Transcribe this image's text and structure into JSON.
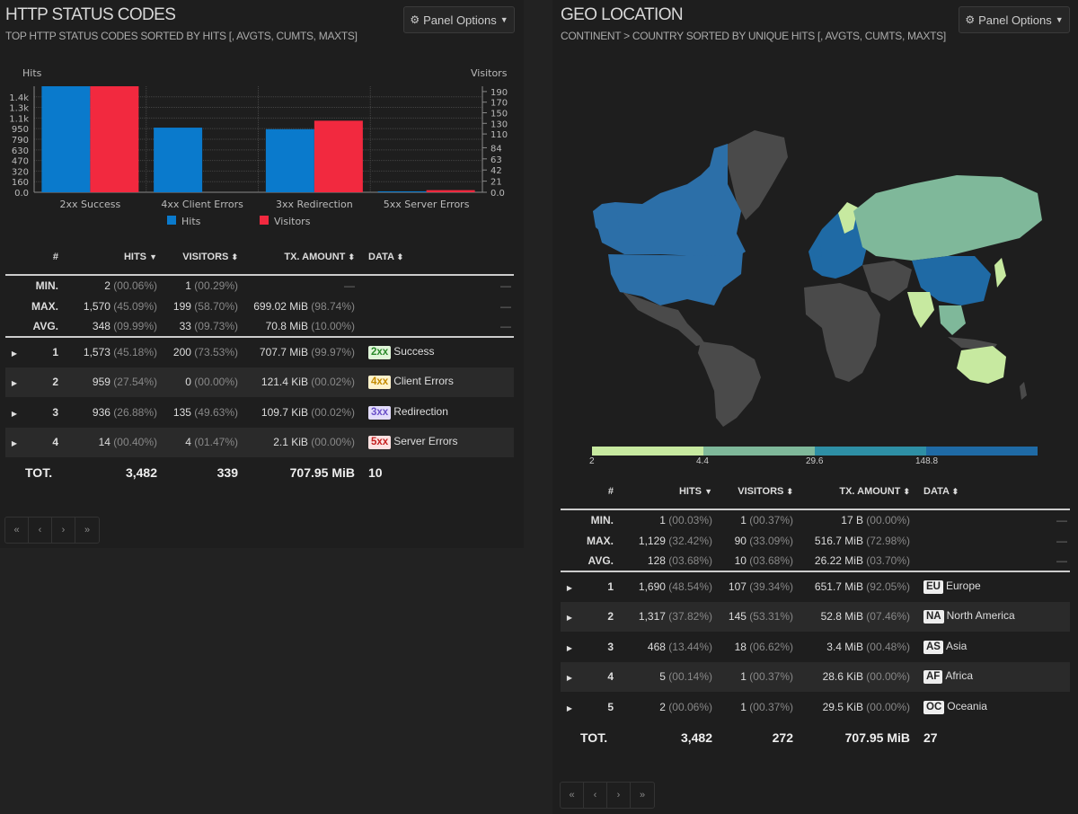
{
  "http_panel": {
    "title": "HTTP STATUS CODES",
    "subtitle": "TOP HTTP STATUS CODES SORTED BY HITS [, AVGTS, CUMTS, MAXTS]",
    "options_label": "Panel Options",
    "chart_data": {
      "type": "bar",
      "categories": [
        "2xx Success",
        "4xx Client Errors",
        "3xx Redirection",
        "5xx Server Errors"
      ],
      "series": [
        {
          "name": "Hits",
          "values": [
            1573,
            959,
            936,
            14
          ],
          "color": "#0a7acc",
          "axis": "left"
        },
        {
          "name": "Visitors",
          "values": [
            200,
            0,
            135,
            4
          ],
          "color": "#f2293f",
          "axis": "right"
        }
      ],
      "ylabel_left": "Hits",
      "ylabel_right": "Visitors",
      "ylim_left": [
        0,
        1573
      ],
      "ylim_right": [
        0,
        200
      ],
      "left_ticks": [
        "1.4k",
        "1.3k",
        "1.1k",
        "950",
        "790",
        "630",
        "470",
        "320",
        "160",
        "0.0"
      ],
      "left_tick_values": [
        1416,
        1259,
        1101,
        944,
        787,
        629,
        472,
        315,
        157,
        0
      ],
      "right_ticks": [
        "190",
        "170",
        "150",
        "130",
        "110",
        "84",
        "63",
        "42",
        "21",
        "0.0"
      ],
      "right_tick_values": [
        190,
        170,
        150,
        130,
        110,
        84,
        63,
        42,
        21,
        0
      ],
      "legend": [
        "Hits",
        "Visitors"
      ],
      "legend_position": "bottom"
    },
    "table": {
      "headers": {
        "num": "#",
        "hits": "HITS",
        "visitors": "VISITORS",
        "tx": "TX. AMOUNT",
        "data": "DATA"
      },
      "stats": [
        {
          "label": "MIN.",
          "hits": "2",
          "hits_pct": "(00.06%)",
          "visitors": "1",
          "visitors_pct": "(00.29%)",
          "tx": "—",
          "tx_pct": "",
          "data": "—"
        },
        {
          "label": "MAX.",
          "hits": "1,570",
          "hits_pct": "(45.09%)",
          "visitors": "199",
          "visitors_pct": "(58.70%)",
          "tx": "699.02 MiB",
          "tx_pct": "(98.74%)",
          "data": "—"
        },
        {
          "label": "AVG.",
          "hits": "348",
          "hits_pct": "(09.99%)",
          "visitors": "33",
          "visitors_pct": "(09.73%)",
          "tx": "70.8 MiB",
          "tx_pct": "(10.00%)",
          "data": "—"
        }
      ],
      "rows": [
        {
          "num": "1",
          "hits": "1,573",
          "hits_pct": "(45.18%)",
          "visitors": "200",
          "visitors_pct": "(73.53%)",
          "tx": "707.7 MiB",
          "tx_pct": "(99.97%)",
          "badge": "2xx",
          "label": "Success"
        },
        {
          "num": "2",
          "hits": "959",
          "hits_pct": "(27.54%)",
          "visitors": "0",
          "visitors_pct": "(00.00%)",
          "tx": "121.4 KiB",
          "tx_pct": "(00.02%)",
          "badge": "4xx",
          "label": "Client Errors"
        },
        {
          "num": "3",
          "hits": "936",
          "hits_pct": "(26.88%)",
          "visitors": "135",
          "visitors_pct": "(49.63%)",
          "tx": "109.7 KiB",
          "tx_pct": "(00.02%)",
          "badge": "3xx",
          "label": "Redirection"
        },
        {
          "num": "4",
          "hits": "14",
          "hits_pct": "(00.40%)",
          "visitors": "4",
          "visitors_pct": "(01.47%)",
          "tx": "2.1 KiB",
          "tx_pct": "(00.00%)",
          "badge": "5xx",
          "label": "Server Errors"
        }
      ],
      "total": {
        "label": "TOT.",
        "hits": "3,482",
        "visitors": "339",
        "tx": "707.95 MiB",
        "data": "10"
      }
    },
    "pager": [
      "«",
      "‹",
      "›",
      "»"
    ]
  },
  "geo_panel": {
    "title": "GEO LOCATION",
    "subtitle": "CONTINENT > COUNTRY SORTED BY UNIQUE HITS [, AVGTS, CUMTS, MAXTS]",
    "options_label": "Panel Options",
    "scale": {
      "labels": [
        "2",
        "4.4",
        "29.6",
        "148.8"
      ],
      "colors": [
        "#c7e9a0",
        "#7fb89a",
        "#2e8fa5",
        "#1f6aa5"
      ]
    },
    "map_colors": {
      "land": "#4a4a4a",
      "eu": "#1f6aa5",
      "na": "#2c6fa8",
      "as": "#7fb89a",
      "af": "#4a4a4a",
      "oc": "#c7e9a0",
      "sea": "#1e1e1e"
    },
    "table": {
      "headers": {
        "num": "#",
        "hits": "HITS",
        "visitors": "VISITORS",
        "tx": "TX. AMOUNT",
        "data": "DATA"
      },
      "stats": [
        {
          "label": "MIN.",
          "hits": "1",
          "hits_pct": "(00.03%)",
          "visitors": "1",
          "visitors_pct": "(00.37%)",
          "tx": "17 B",
          "tx_pct": "(00.00%)",
          "data": "—"
        },
        {
          "label": "MAX.",
          "hits": "1,129",
          "hits_pct": "(32.42%)",
          "visitors": "90",
          "visitors_pct": "(33.09%)",
          "tx": "516.7 MiB",
          "tx_pct": "(72.98%)",
          "data": "—"
        },
        {
          "label": "AVG.",
          "hits": "128",
          "hits_pct": "(03.68%)",
          "visitors": "10",
          "visitors_pct": "(03.68%)",
          "tx": "26.22 MiB",
          "tx_pct": "(03.70%)",
          "data": "—"
        }
      ],
      "rows": [
        {
          "num": "1",
          "hits": "1,690",
          "hits_pct": "(48.54%)",
          "visitors": "107",
          "visitors_pct": "(39.34%)",
          "tx": "651.7 MiB",
          "tx_pct": "(92.05%)",
          "badge": "EU",
          "label": "Europe"
        },
        {
          "num": "2",
          "hits": "1,317",
          "hits_pct": "(37.82%)",
          "visitors": "145",
          "visitors_pct": "(53.31%)",
          "tx": "52.8 MiB",
          "tx_pct": "(07.46%)",
          "badge": "NA",
          "label": "North America"
        },
        {
          "num": "3",
          "hits": "468",
          "hits_pct": "(13.44%)",
          "visitors": "18",
          "visitors_pct": "(06.62%)",
          "tx": "3.4 MiB",
          "tx_pct": "(00.48%)",
          "badge": "AS",
          "label": "Asia"
        },
        {
          "num": "4",
          "hits": "5",
          "hits_pct": "(00.14%)",
          "visitors": "1",
          "visitors_pct": "(00.37%)",
          "tx": "28.6 KiB",
          "tx_pct": "(00.00%)",
          "badge": "AF",
          "label": "Africa"
        },
        {
          "num": "5",
          "hits": "2",
          "hits_pct": "(00.06%)",
          "visitors": "1",
          "visitors_pct": "(00.37%)",
          "tx": "29.5 KiB",
          "tx_pct": "(00.00%)",
          "badge": "OC",
          "label": "Oceania"
        }
      ],
      "total": {
        "label": "TOT.",
        "hits": "3,482",
        "visitors": "272",
        "tx": "707.95 MiB",
        "data": "27"
      }
    },
    "pager": [
      "«",
      "‹",
      "›",
      "»"
    ]
  }
}
